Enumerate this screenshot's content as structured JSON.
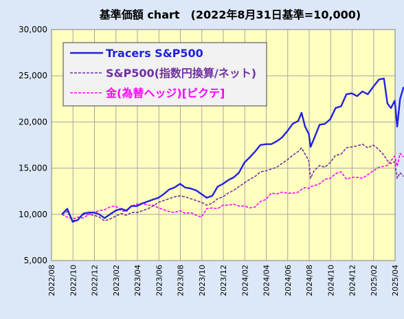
{
  "chart_data": {
    "type": "line",
    "title": "基準価額 chart　(2022年8月31日基準=10,000)",
    "xlabel": "",
    "ylabel": "",
    "ylim": [
      5000,
      30000
    ],
    "yticks": [
      5000,
      10000,
      15000,
      20000,
      25000,
      30000
    ],
    "ytick_labels": [
      "5,000",
      "10,000",
      "15,000",
      "20,000",
      "25,000",
      "30,000"
    ],
    "xlim": [
      "2022-08",
      "2025-04"
    ],
    "xtick_labels": [
      "2022/08",
      "2022/10",
      "2022/12",
      "2023/02",
      "2023/04",
      "2023/06",
      "2023/08",
      "2023/10",
      "2023/12",
      "2024/02",
      "2024/04",
      "2024/06",
      "2024/08",
      "2024/10",
      "2024/12",
      "2025/02",
      "2025/04"
    ],
    "grid": true,
    "legend_position": "top-left",
    "plot_background": "#ffffc0",
    "series": [
      {
        "name": "Tracers S&P500",
        "color": "#2020e0",
        "style": "solid",
        "x": [
          "2022-08-31",
          "2022-09-15",
          "2022-09-30",
          "2022-10-15",
          "2022-10-31",
          "2022-11-15",
          "2022-11-30",
          "2022-12-15",
          "2022-12-30",
          "2023-01-15",
          "2023-01-31",
          "2023-02-15",
          "2023-02-28",
          "2023-03-15",
          "2023-03-31",
          "2023-04-15",
          "2023-04-30",
          "2023-05-15",
          "2023-05-31",
          "2023-06-15",
          "2023-06-30",
          "2023-07-15",
          "2023-07-31",
          "2023-08-15",
          "2023-08-31",
          "2023-09-15",
          "2023-09-30",
          "2023-10-15",
          "2023-10-31",
          "2023-11-15",
          "2023-11-30",
          "2023-12-15",
          "2023-12-31",
          "2024-01-15",
          "2024-01-31",
          "2024-02-15",
          "2024-02-29",
          "2024-03-15",
          "2024-03-31",
          "2024-04-15",
          "2024-04-30",
          "2024-05-15",
          "2024-05-31",
          "2024-06-15",
          "2024-06-30",
          "2024-07-10",
          "2024-07-20",
          "2024-07-31",
          "2024-08-05",
          "2024-08-15",
          "2024-08-31",
          "2024-09-15",
          "2024-09-30",
          "2024-10-15",
          "2024-10-31",
          "2024-11-15",
          "2024-11-30",
          "2024-12-15",
          "2024-12-31",
          "2025-01-15",
          "2025-01-31",
          "2025-02-15",
          "2025-02-28",
          "2025-03-10",
          "2025-03-20",
          "2025-03-31",
          "2025-04-07",
          "2025-04-15",
          "2025-04-25"
        ],
        "y": [
          10000,
          10600,
          9200,
          9400,
          10100,
          10200,
          10200,
          10000,
          9600,
          10000,
          10400,
          10600,
          10400,
          10900,
          10900,
          11200,
          11400,
          11600,
          11800,
          12200,
          12700,
          12900,
          13300,
          12900,
          12800,
          12600,
          12200,
          11800,
          12000,
          13000,
          13300,
          13700,
          14000,
          14500,
          15600,
          16200,
          16800,
          17500,
          17600,
          17600,
          17900,
          18300,
          19000,
          19800,
          20100,
          21000,
          19500,
          18700,
          17300,
          18200,
          19700,
          19800,
          20300,
          21500,
          21700,
          23000,
          23100,
          22800,
          23300,
          23000,
          23800,
          24600,
          24700,
          22000,
          21500,
          22300,
          19500,
          22500,
          23800
        ]
      },
      {
        "name": "S&P500(指数円換算/ネット)",
        "color": "#7030a0",
        "style": "dashed",
        "x": [
          "2022-08-31",
          "2022-09-15",
          "2022-09-30",
          "2022-10-15",
          "2022-10-31",
          "2022-11-15",
          "2022-11-30",
          "2022-12-15",
          "2022-12-30",
          "2023-01-15",
          "2023-01-31",
          "2023-02-15",
          "2023-02-28",
          "2023-03-15",
          "2023-03-31",
          "2023-04-15",
          "2023-04-30",
          "2023-05-15",
          "2023-05-31",
          "2023-06-15",
          "2023-06-30",
          "2023-07-15",
          "2023-07-31",
          "2023-08-15",
          "2023-08-31",
          "2023-09-15",
          "2023-09-30",
          "2023-10-15",
          "2023-10-31",
          "2023-11-15",
          "2023-11-30",
          "2023-12-15",
          "2023-12-31",
          "2024-01-15",
          "2024-01-31",
          "2024-02-15",
          "2024-02-29",
          "2024-03-15",
          "2024-03-31",
          "2024-04-15",
          "2024-04-30",
          "2024-05-15",
          "2024-05-31",
          "2024-06-15",
          "2024-06-30",
          "2024-07-10",
          "2024-07-20",
          "2024-07-31",
          "2024-08-05",
          "2024-08-15",
          "2024-08-31",
          "2024-09-15",
          "2024-09-30",
          "2024-10-15",
          "2024-10-31",
          "2024-11-15",
          "2024-11-30",
          "2024-12-15",
          "2024-12-31",
          "2025-01-15",
          "2025-01-31",
          "2025-02-15",
          "2025-02-28",
          "2025-03-10",
          "2025-03-20",
          "2025-03-31",
          "2025-04-07",
          "2025-04-15",
          "2025-04-25"
        ],
        "y": [
          10000,
          10300,
          9300,
          9400,
          10000,
          10000,
          9900,
          9700,
          9300,
          9500,
          9800,
          10100,
          9900,
          10200,
          10200,
          10400,
          10600,
          10900,
          11300,
          11500,
          11700,
          11900,
          12000,
          11900,
          11700,
          11500,
          11300,
          11000,
          11200,
          11700,
          11900,
          12300,
          12600,
          13000,
          13400,
          13800,
          14100,
          14600,
          14700,
          14900,
          15100,
          15500,
          15900,
          16400,
          16800,
          17200,
          16500,
          15800,
          13900,
          14700,
          15300,
          15100,
          15600,
          16400,
          16500,
          17200,
          17300,
          17400,
          17600,
          17200,
          17500,
          17000,
          16400,
          15800,
          15500,
          15700,
          13900,
          14500,
          14100
        ]
      },
      {
        "name": "金(為替ヘッジ)[ピクテ]",
        "color": "#ff00ff",
        "style": "dashed",
        "x": [
          "2022-08-31",
          "2022-09-15",
          "2022-09-30",
          "2022-10-15",
          "2022-10-31",
          "2022-11-15",
          "2022-11-30",
          "2022-12-15",
          "2022-12-30",
          "2023-01-15",
          "2023-01-31",
          "2023-02-15",
          "2023-02-28",
          "2023-03-15",
          "2023-03-31",
          "2023-04-15",
          "2023-04-30",
          "2023-05-15",
          "2023-05-31",
          "2023-06-15",
          "2023-06-30",
          "2023-07-15",
          "2023-07-31",
          "2023-08-15",
          "2023-08-31",
          "2023-09-15",
          "2023-09-30",
          "2023-10-15",
          "2023-10-31",
          "2023-11-15",
          "2023-11-30",
          "2023-12-15",
          "2023-12-31",
          "2024-01-15",
          "2024-01-31",
          "2024-02-15",
          "2024-02-29",
          "2024-03-15",
          "2024-03-31",
          "2024-04-15",
          "2024-04-30",
          "2024-05-15",
          "2024-05-31",
          "2024-06-15",
          "2024-06-30",
          "2024-07-10",
          "2024-07-20",
          "2024-07-31",
          "2024-08-05",
          "2024-08-15",
          "2024-08-31",
          "2024-09-15",
          "2024-09-30",
          "2024-10-15",
          "2024-10-31",
          "2024-11-15",
          "2024-11-30",
          "2024-12-15",
          "2024-12-31",
          "2025-01-15",
          "2025-01-31",
          "2025-02-15",
          "2025-02-28",
          "2025-03-10",
          "2025-03-20",
          "2025-03-31",
          "2025-04-07",
          "2025-04-15",
          "2025-04-25"
        ],
        "y": [
          10000,
          9700,
          9500,
          9700,
          9600,
          10000,
          10200,
          10400,
          10500,
          10800,
          10900,
          10400,
          10300,
          10900,
          11100,
          11200,
          11000,
          11000,
          10700,
          10500,
          10300,
          10200,
          10400,
          10100,
          10200,
          9900,
          9700,
          10600,
          10700,
          10600,
          11000,
          11000,
          11100,
          10900,
          10900,
          10700,
          10800,
          11400,
          11600,
          12300,
          12200,
          12400,
          12300,
          12300,
          12400,
          12700,
          12900,
          12800,
          13000,
          13100,
          13300,
          13800,
          13900,
          14400,
          14600,
          13800,
          14000,
          14000,
          13900,
          14300,
          14700,
          15100,
          15200,
          15300,
          15800,
          16300,
          15200,
          16600,
          16200
        ]
      }
    ]
  }
}
